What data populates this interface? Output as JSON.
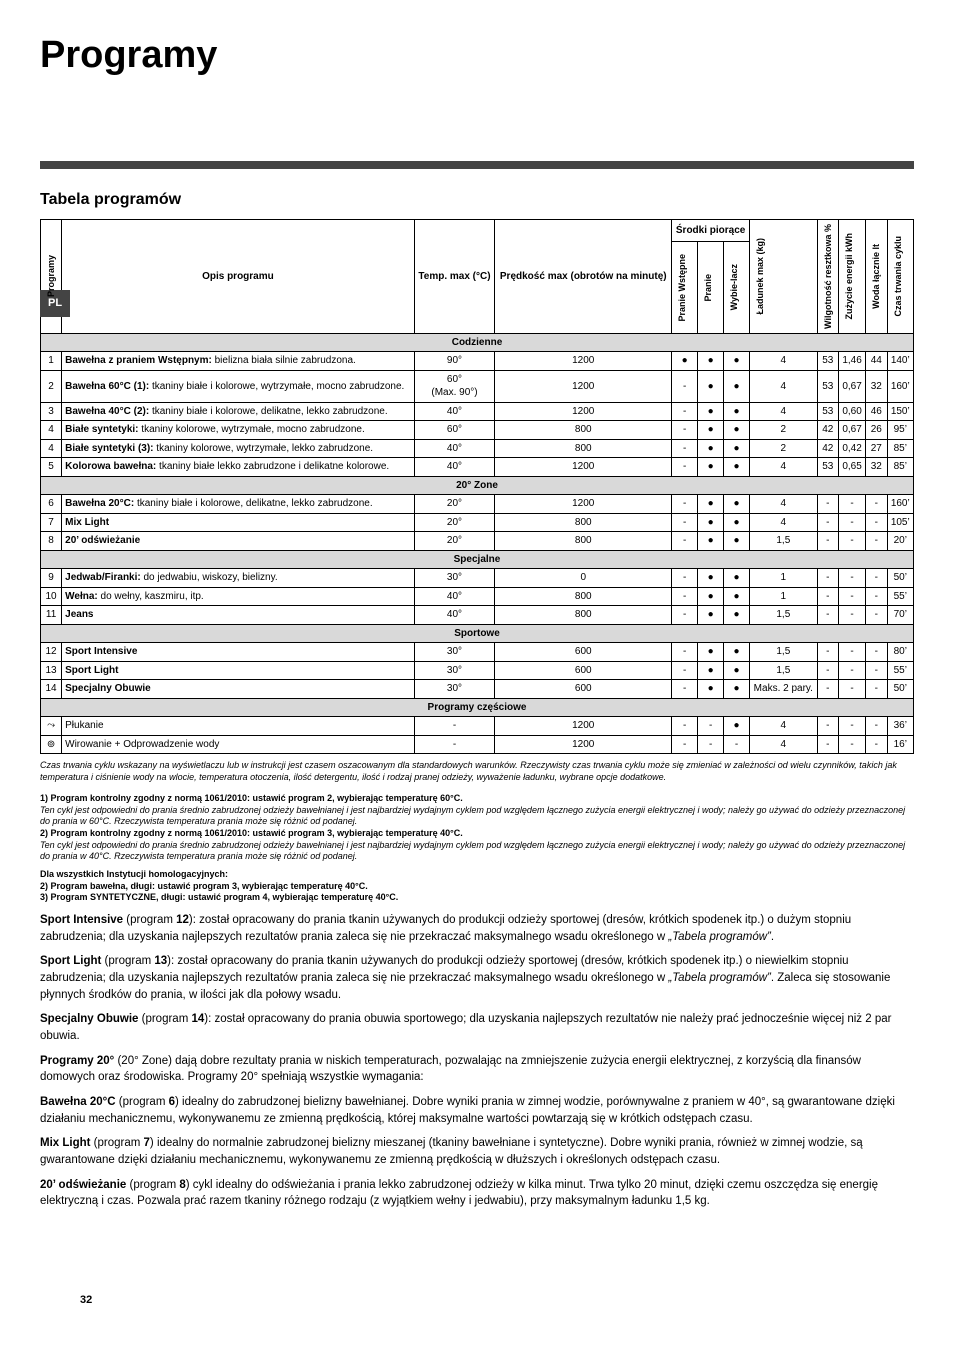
{
  "sideTab": "PL",
  "title": "Programy",
  "subtitle": "Tabela programów",
  "headers": {
    "programy": "Programy",
    "opis": "Opis programu",
    "temp": "Temp. max (°C)",
    "predkosc": "Prędkość max (obrotów na minutę)",
    "srodki": "Środki piorące",
    "pranieWstepne": "Pranie Wstępne",
    "pranie": "Pranie",
    "wybielacz": "Wybie-lacz",
    "ladunek": "Ładunek max (kg)",
    "wilgotnosc": "Wilgotność resztkowa %",
    "zuzycie": "Zużycie energii kWh",
    "woda": "Woda łącznie lt",
    "czas": "Czas trwania cyklu"
  },
  "sections": [
    {
      "title": "Codzienne",
      "rows": [
        {
          "n": "1",
          "desc": "<b>Bawełna z praniem Wstępnym:</b> bielizna biała silnie zabrudzona.",
          "temp": "90°",
          "rpm": "1200",
          "pw": "●",
          "p": "●",
          "w": "●",
          "lad": "4",
          "wil": "53",
          "kwh": "1,46",
          "lt": "44",
          "t": "140’"
        },
        {
          "n": "2",
          "desc": "<b>Bawełna 60°C (1):</b> tkaniny białe i kolorowe, wytrzymałe, mocno zabrudzone.",
          "temp": "60°<br>(Max. 90°)",
          "rpm": "1200",
          "pw": "-",
          "p": "●",
          "w": "●",
          "lad": "4",
          "wil": "53",
          "kwh": "0,67",
          "lt": "32",
          "t": "160’"
        },
        {
          "n": "3",
          "desc": "<b>Bawełna 40°C (2):</b> tkaniny białe i kolorowe, delikatne, lekko zabrudzone.",
          "temp": "40°",
          "rpm": "1200",
          "pw": "-",
          "p": "●",
          "w": "●",
          "lad": "4",
          "wil": "53",
          "kwh": "0,60",
          "lt": "46",
          "t": "150’"
        },
        {
          "n": "4",
          "desc": "<b>Białe syntetyki:</b> tkaniny kolorowe, wytrzymałe, mocno zabrudzone.",
          "temp": "60°",
          "rpm": "800",
          "pw": "-",
          "p": "●",
          "w": "●",
          "lad": "2",
          "wil": "42",
          "kwh": "0,67",
          "lt": "26",
          "t": "95’"
        },
        {
          "n": "4",
          "desc": "<b>Białe syntetyki (3):</b> tkaniny kolorowe, wytrzymałe, lekko zabrudzone.",
          "temp": "40°",
          "rpm": "800",
          "pw": "-",
          "p": "●",
          "w": "●",
          "lad": "2",
          "wil": "42",
          "kwh": "0,42",
          "lt": "27",
          "t": "85’"
        },
        {
          "n": "5",
          "desc": "<b>Kolorowa bawełna:</b> tkaniny białe lekko zabrudzone i delikatne kolorowe.",
          "temp": "40°",
          "rpm": "1200",
          "pw": "-",
          "p": "●",
          "w": "●",
          "lad": "4",
          "wil": "53",
          "kwh": "0,65",
          "lt": "32",
          "t": "85’"
        }
      ]
    },
    {
      "title": "20° Zone",
      "rows": [
        {
          "n": "6",
          "desc": "<b>Bawełna 20°C:</b> tkaniny białe i kolorowe, delikatne, lekko zabrudzone.",
          "temp": "20°",
          "rpm": "1200",
          "pw": "-",
          "p": "●",
          "w": "●",
          "lad": "4",
          "wil": "-",
          "kwh": "-",
          "lt": "-",
          "t": "160’"
        },
        {
          "n": "7",
          "desc": "<b>Mix Light</b>",
          "temp": "20°",
          "rpm": "800",
          "pw": "-",
          "p": "●",
          "w": "●",
          "lad": "4",
          "wil": "-",
          "kwh": "-",
          "lt": "-",
          "t": "105’"
        },
        {
          "n": "8",
          "desc": "<b>20’ odświeżanie</b>",
          "temp": "20°",
          "rpm": "800",
          "pw": "-",
          "p": "●",
          "w": "●",
          "lad": "1,5",
          "wil": "-",
          "kwh": "-",
          "lt": "-",
          "t": "20’"
        }
      ]
    },
    {
      "title": "Specjalne",
      "rows": [
        {
          "n": "9",
          "desc": "<b>Jedwab/Firanki:</b> do jedwabiu, wiskozy, bielizny.",
          "temp": "30°",
          "rpm": "0",
          "pw": "-",
          "p": "●",
          "w": "●",
          "lad": "1",
          "wil": "-",
          "kwh": "-",
          "lt": "-",
          "t": "50’"
        },
        {
          "n": "10",
          "desc": "<b>Wełna:</b> do wełny, kaszmiru, itp.",
          "temp": "40°",
          "rpm": "800",
          "pw": "-",
          "p": "●",
          "w": "●",
          "lad": "1",
          "wil": "-",
          "kwh": "-",
          "lt": "-",
          "t": "55’"
        },
        {
          "n": "11",
          "desc": "<b>Jeans</b>",
          "temp": "40°",
          "rpm": "800",
          "pw": "-",
          "p": "●",
          "w": "●",
          "lad": "1,5",
          "wil": "-",
          "kwh": "-",
          "lt": "-",
          "t": "70’"
        }
      ]
    },
    {
      "title": "Sportowe",
      "rows": [
        {
          "n": "12",
          "desc": "<b>Sport Intensive</b>",
          "temp": "30°",
          "rpm": "600",
          "pw": "-",
          "p": "●",
          "w": "●",
          "lad": "1,5",
          "wil": "-",
          "kwh": "-",
          "lt": "-",
          "t": "80’"
        },
        {
          "n": "13",
          "desc": "<b>Sport Light</b>",
          "temp": "30°",
          "rpm": "600",
          "pw": "-",
          "p": "●",
          "w": "●",
          "lad": "1,5",
          "wil": "-",
          "kwh": "-",
          "lt": "-",
          "t": "55’"
        },
        {
          "n": "14",
          "desc": "<b>Specjalny Obuwie</b>",
          "temp": "30°",
          "rpm": "600",
          "pw": "-",
          "p": "●",
          "w": "●",
          "lad": "Maks. 2 pary.",
          "wil": "-",
          "kwh": "-",
          "lt": "-",
          "t": "50’"
        }
      ]
    },
    {
      "title": "Programy częściowe",
      "rows": [
        {
          "n": "⤳",
          "desc": "Płukanie",
          "temp": "-",
          "rpm": "1200",
          "pw": "-",
          "p": "-",
          "w": "●",
          "lad": "4",
          "wil": "-",
          "kwh": "-",
          "lt": "-",
          "t": "36’"
        },
        {
          "n": "⊚",
          "desc": "Wirowanie + Odprowadzenie wody",
          "temp": "-",
          "rpm": "1200",
          "pw": "-",
          "p": "-",
          "w": "-",
          "lad": "4",
          "wil": "-",
          "kwh": "-",
          "lt": "-",
          "t": "16’"
        }
      ]
    }
  ],
  "footnote": "Czas trwania cyklu wskazany na wyświetlaczu lub w instrukcji jest czasem oszacowanym dla standardowych warunków. Rzeczywisty czas trwania cyklu może się zmieniać w zależności od wielu czynników, takich jak temperatura i ciśnienie wody na wlocie, temperatura otoczenia, ilość detergentu, ilość i rodzaj pranej odzieży, wyważenie ładunku, wybrane opcje dodatkowe.",
  "notes": [
    "<span class='nb'>1) Program kontrolny zgodny z normą 1061/2010: ustawić program 2, wybierając temperaturę 60°C.</span><br>Ten cykl jest odpowiedni do prania średnio zabrudzonej odzieży bawełnianej i jest najbardziej wydajnym cyklem pod względem łącznego zużycia energii elektrycznej i wody; należy go używać do odzieży przeznaczonej do prania w 60°C. Rzeczywista temperatura prania może się różnić od podanej.",
    "<span class='nb'>2) Program kontrolny zgodny z normą 1061/2010: ustawić program 3, wybierając temperaturę 40°C.</span><br>Ten cykl jest odpowiedni do prania średnio zabrudzonej odzieży bawełnianej i jest najbardziej wydajnym cyklem pod względem łącznego zużycia energii elektrycznej i wody; należy go używać do odzieży przeznaczonej do prania w 40°C. Rzeczywista temperatura prania może się różnić od podanej."
  ],
  "notes2": [
    "<span class='nb'>Dla wszystkich Instytucji homologacyjnych:</span>",
    "<span class='nb'>2) Program bawełna, długi: ustawić program 3, wybierając temperaturę 40°C.</span>",
    "<span class='nb'>3) Program SYNTETYCZNE, długi: ustawić program 4, wybierając temperaturę 40°C.</span>"
  ],
  "paragraphs": [
    "<b>Sport Intensive</b> (program <b>12</b>): został opracowany do prania tkanin używanych do produkcji odzieży sportowej (dresów, krótkich spodenek itp.) o dużym stopniu zabrudzenia; dla uzyskania najlepszych rezultatów prania zaleca się nie przekraczać maksymalnego wsadu określonego w <i>„Tabela programów”</i>.",
    "<b>Sport Light</b> (program <b>13</b>): został opracowany do prania tkanin używanych do produkcji odzieży sportowej (dresów, krótkich spodenek itp.) o niewielkim stopniu zabrudzenia; dla uzyskania najlepszych rezultatów prania zaleca się nie przekraczać maksymalnego wsadu określonego w <i>„Tabela programów”</i>. Zaleca się stosowanie płynnych środków do prania, w ilości jak dla połowy wsadu.",
    "<b>Specjalny Obuwie</b> (program <b>14</b>): został opracowany do prania obuwia sportowego; dla uzyskania najlepszych rezultatów nie należy prać jednocześnie więcej niż 2 par obuwia.",
    "<b>Programy 20°</b> (20° Zone) dają dobre rezultaty prania w niskich temperaturach, pozwalając na zmniejszenie zużycia energii elektrycznej, z korzyścią dla finansów domowych oraz środowiska. Programy 20° spełniają wszystkie wymagania:",
    "<b>Bawełna 20°C</b> (program <b>6</b>) idealny do zabrudzonej bielizny bawełnianej. Dobre wyniki prania w zimnej wodzie, porównywalne z praniem w 40°, są gwarantowane dzięki działaniu mechanicznemu, wykonywanemu ze zmienną prędkością, której maksymalne wartości powtarzają się w krótkich odstępach czasu.",
    "<b>Mix Light</b> (program <b>7</b>) idealny do normalnie zabrudzonej bielizny mieszanej (tkaniny bawełniane i syntetyczne). Dobre wyniki prania, również w zimnej wodzie, są gwarantowane dzięki działaniu mechanicznemu, wykonywanemu ze zmienną prędkością w dłuższych i określonych odstępach czasu.",
    "<b>20’ odświeżanie</b> (program <b>8</b>) cykl idealny do odświeżania i prania lekko zabrudzonej odzieży w kilka minut. Trwa tylko 20 minut, dzięki czemu oszczędza się energię elektryczną i czas. Pozwala prać razem tkaniny różnego rodzaju (z wyjątkiem wełny i jedwabiu), przy maksymalnym ładunku 1,5 kg."
  ],
  "pageNumber": "32"
}
